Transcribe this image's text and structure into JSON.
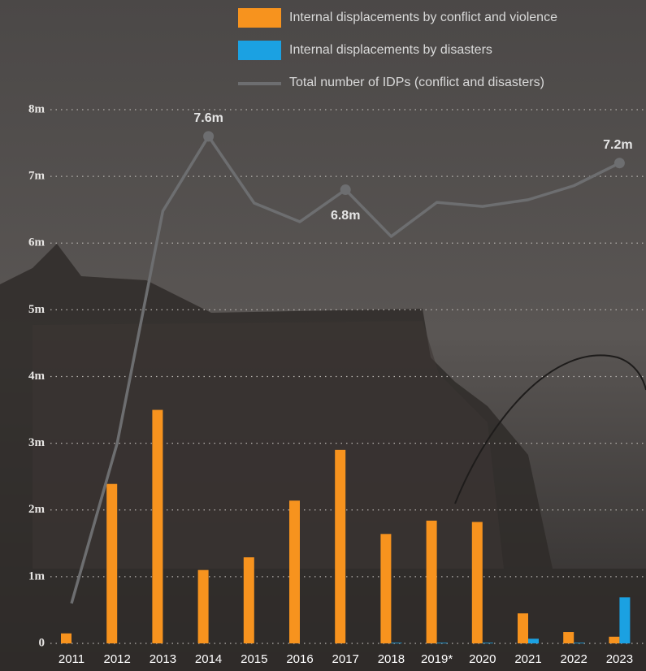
{
  "chart_data": {
    "type": "bar",
    "categories": [
      "2011",
      "2012",
      "2013",
      "2014",
      "2015",
      "2016",
      "2017",
      "2018",
      "2019*",
      "2020",
      "2021",
      "2022",
      "2023"
    ],
    "series": [
      {
        "name": "Internal displacements by conflict and violence",
        "type": "bar",
        "color": "#f7931e",
        "values": [
          0.15,
          2.39,
          3.5,
          1.1,
          1.29,
          2.14,
          2.9,
          1.64,
          1.84,
          1.82,
          0.45,
          0.17,
          0.1
        ]
      },
      {
        "name": "Internal displacements by disasters",
        "type": "bar",
        "color": "#1ba1e2",
        "values": [
          0,
          0,
          0,
          0,
          0,
          0,
          0,
          0.01,
          0.01,
          0.01,
          0.07,
          0.01,
          0.69
        ]
      },
      {
        "name": "Total number of IDPs (conflict and disasters)",
        "type": "line",
        "color": "#6d6e70",
        "values": [
          0.6,
          3.0,
          6.48,
          7.6,
          6.6,
          6.32,
          6.8,
          6.1,
          6.61,
          6.55,
          6.65,
          6.86,
          7.2
        ],
        "value_labels": [
          null,
          null,
          null,
          "7.6m",
          null,
          null,
          "6.8m",
          null,
          null,
          null,
          null,
          null,
          "7.2m"
        ]
      }
    ],
    "ylim": [
      0,
      8
    ],
    "yticks": [
      0,
      {
        "value": 1,
        "label": "1m"
      },
      {
        "value": 2,
        "label": "2m"
      },
      {
        "value": 3,
        "label": "3m"
      },
      {
        "value": 4,
        "label": "4m"
      },
      {
        "value": 5,
        "label": "5m"
      },
      {
        "value": 6,
        "label": "6m"
      },
      {
        "value": 7,
        "label": "7m"
      },
      {
        "value": 8,
        "label": "8m"
      }
    ],
    "grid": true
  }
}
